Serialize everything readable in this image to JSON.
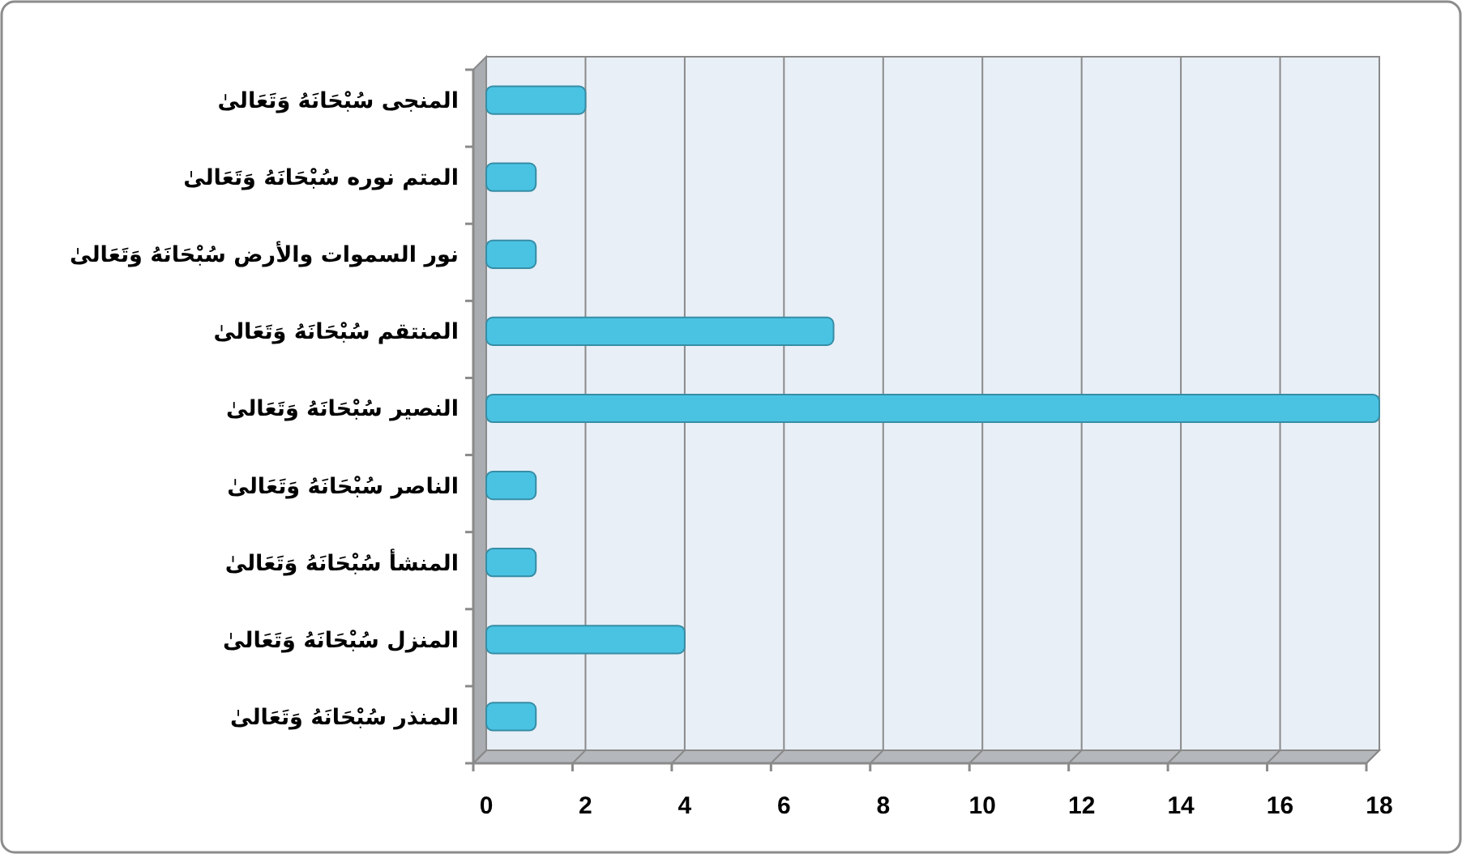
{
  "chart_data": {
    "type": "bar",
    "orientation": "horizontal",
    "categories": [
      "المنجى سُبْحَانَهُ وَتَعَالىٰ",
      "المتم نوره سُبْحَانَهُ وَتَعَالىٰ",
      "نور السموات والأرض سُبْحَانَهُ وَتَعَالىٰ",
      "المنتقم سُبْحَانَهُ وَتَعَالىٰ",
      "النصير سُبْحَانَهُ وَتَعَالىٰ",
      "الناصر سُبْحَانَهُ وَتَعَالىٰ",
      "المنشأ سُبْحَانَهُ وَتَعَالىٰ",
      "المنزل سُبْحَانَهُ وَتَعَالىٰ",
      "المنذر سُبْحَانَهُ وَتَعَالىٰ"
    ],
    "values": [
      2,
      1,
      1,
      7,
      18,
      1,
      1,
      4,
      1
    ],
    "color": "#4ac3e3",
    "xlim": [
      0,
      18
    ],
    "xticks": [
      0,
      2,
      4,
      6,
      8,
      10,
      12,
      14,
      16,
      18
    ],
    "grid": "x"
  }
}
